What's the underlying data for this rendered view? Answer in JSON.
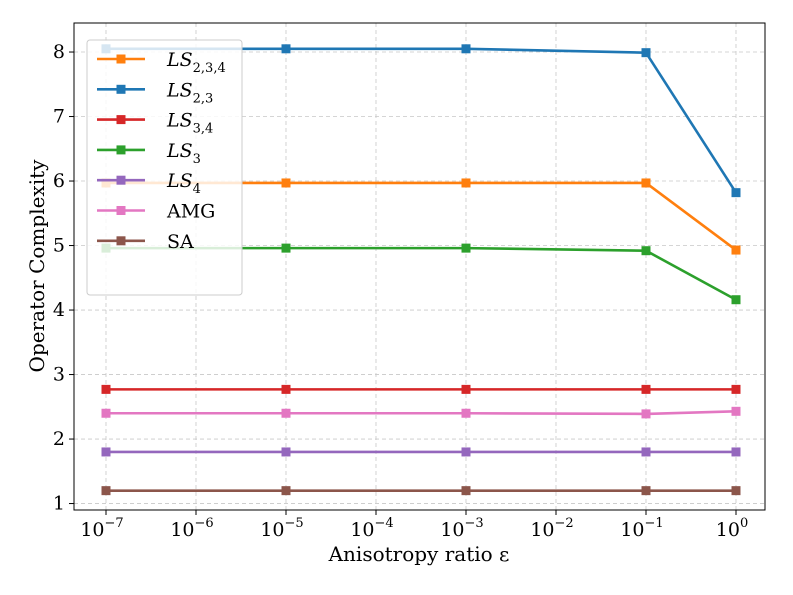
{
  "chart_data": {
    "type": "line",
    "xlabel": "Anisotropy ratio ε",
    "ylabel": "Operator Complexity",
    "x_scale": "log",
    "xlim": [
      1e-07,
      1
    ],
    "ylim": [
      0.9,
      8.45
    ],
    "x_ticks": [
      {
        "value": 1e-07,
        "base": "10",
        "exp": "−7"
      },
      {
        "value": 1e-06,
        "base": "10",
        "exp": "−6"
      },
      {
        "value": 1e-05,
        "base": "10",
        "exp": "−5"
      },
      {
        "value": 0.0001,
        "base": "10",
        "exp": "−4"
      },
      {
        "value": 0.001,
        "base": "10",
        "exp": "−3"
      },
      {
        "value": 0.01,
        "base": "10",
        "exp": "−2"
      },
      {
        "value": 0.1,
        "base": "10",
        "exp": "−1"
      },
      {
        "value": 1,
        "base": "10",
        "exp": "0"
      }
    ],
    "y_ticks": [
      1,
      2,
      3,
      4,
      5,
      6,
      7,
      8
    ],
    "grid": true,
    "legend_position": "top-left",
    "x": [
      1e-07,
      1e-05,
      0.001,
      0.1,
      1
    ],
    "series": [
      {
        "name": "LS",
        "sub": "2,3,4",
        "color": "#ff7f0e",
        "values": [
          5.97,
          5.97,
          5.97,
          5.97,
          4.93
        ]
      },
      {
        "name": "LS",
        "sub": "2,3",
        "color": "#1f77b4",
        "values": [
          8.05,
          8.05,
          8.05,
          7.99,
          5.82
        ]
      },
      {
        "name": "LS",
        "sub": "3,4",
        "color": "#d62728",
        "values": [
          2.77,
          2.77,
          2.77,
          2.77,
          2.77
        ]
      },
      {
        "name": "LS",
        "sub": "3",
        "color": "#2ca02c",
        "values": [
          4.96,
          4.96,
          4.96,
          4.92,
          4.16
        ]
      },
      {
        "name": "LS",
        "sub": "4",
        "color": "#9467bd",
        "values": [
          1.8,
          1.8,
          1.8,
          1.8,
          1.8
        ]
      },
      {
        "name": "AMG",
        "sub": "",
        "color": "#e377c2",
        "values": [
          2.4,
          2.4,
          2.4,
          2.39,
          2.43
        ]
      },
      {
        "name": "SA",
        "sub": "",
        "color": "#8c564b",
        "values": [
          1.2,
          1.2,
          1.2,
          1.2,
          1.2
        ]
      }
    ]
  }
}
